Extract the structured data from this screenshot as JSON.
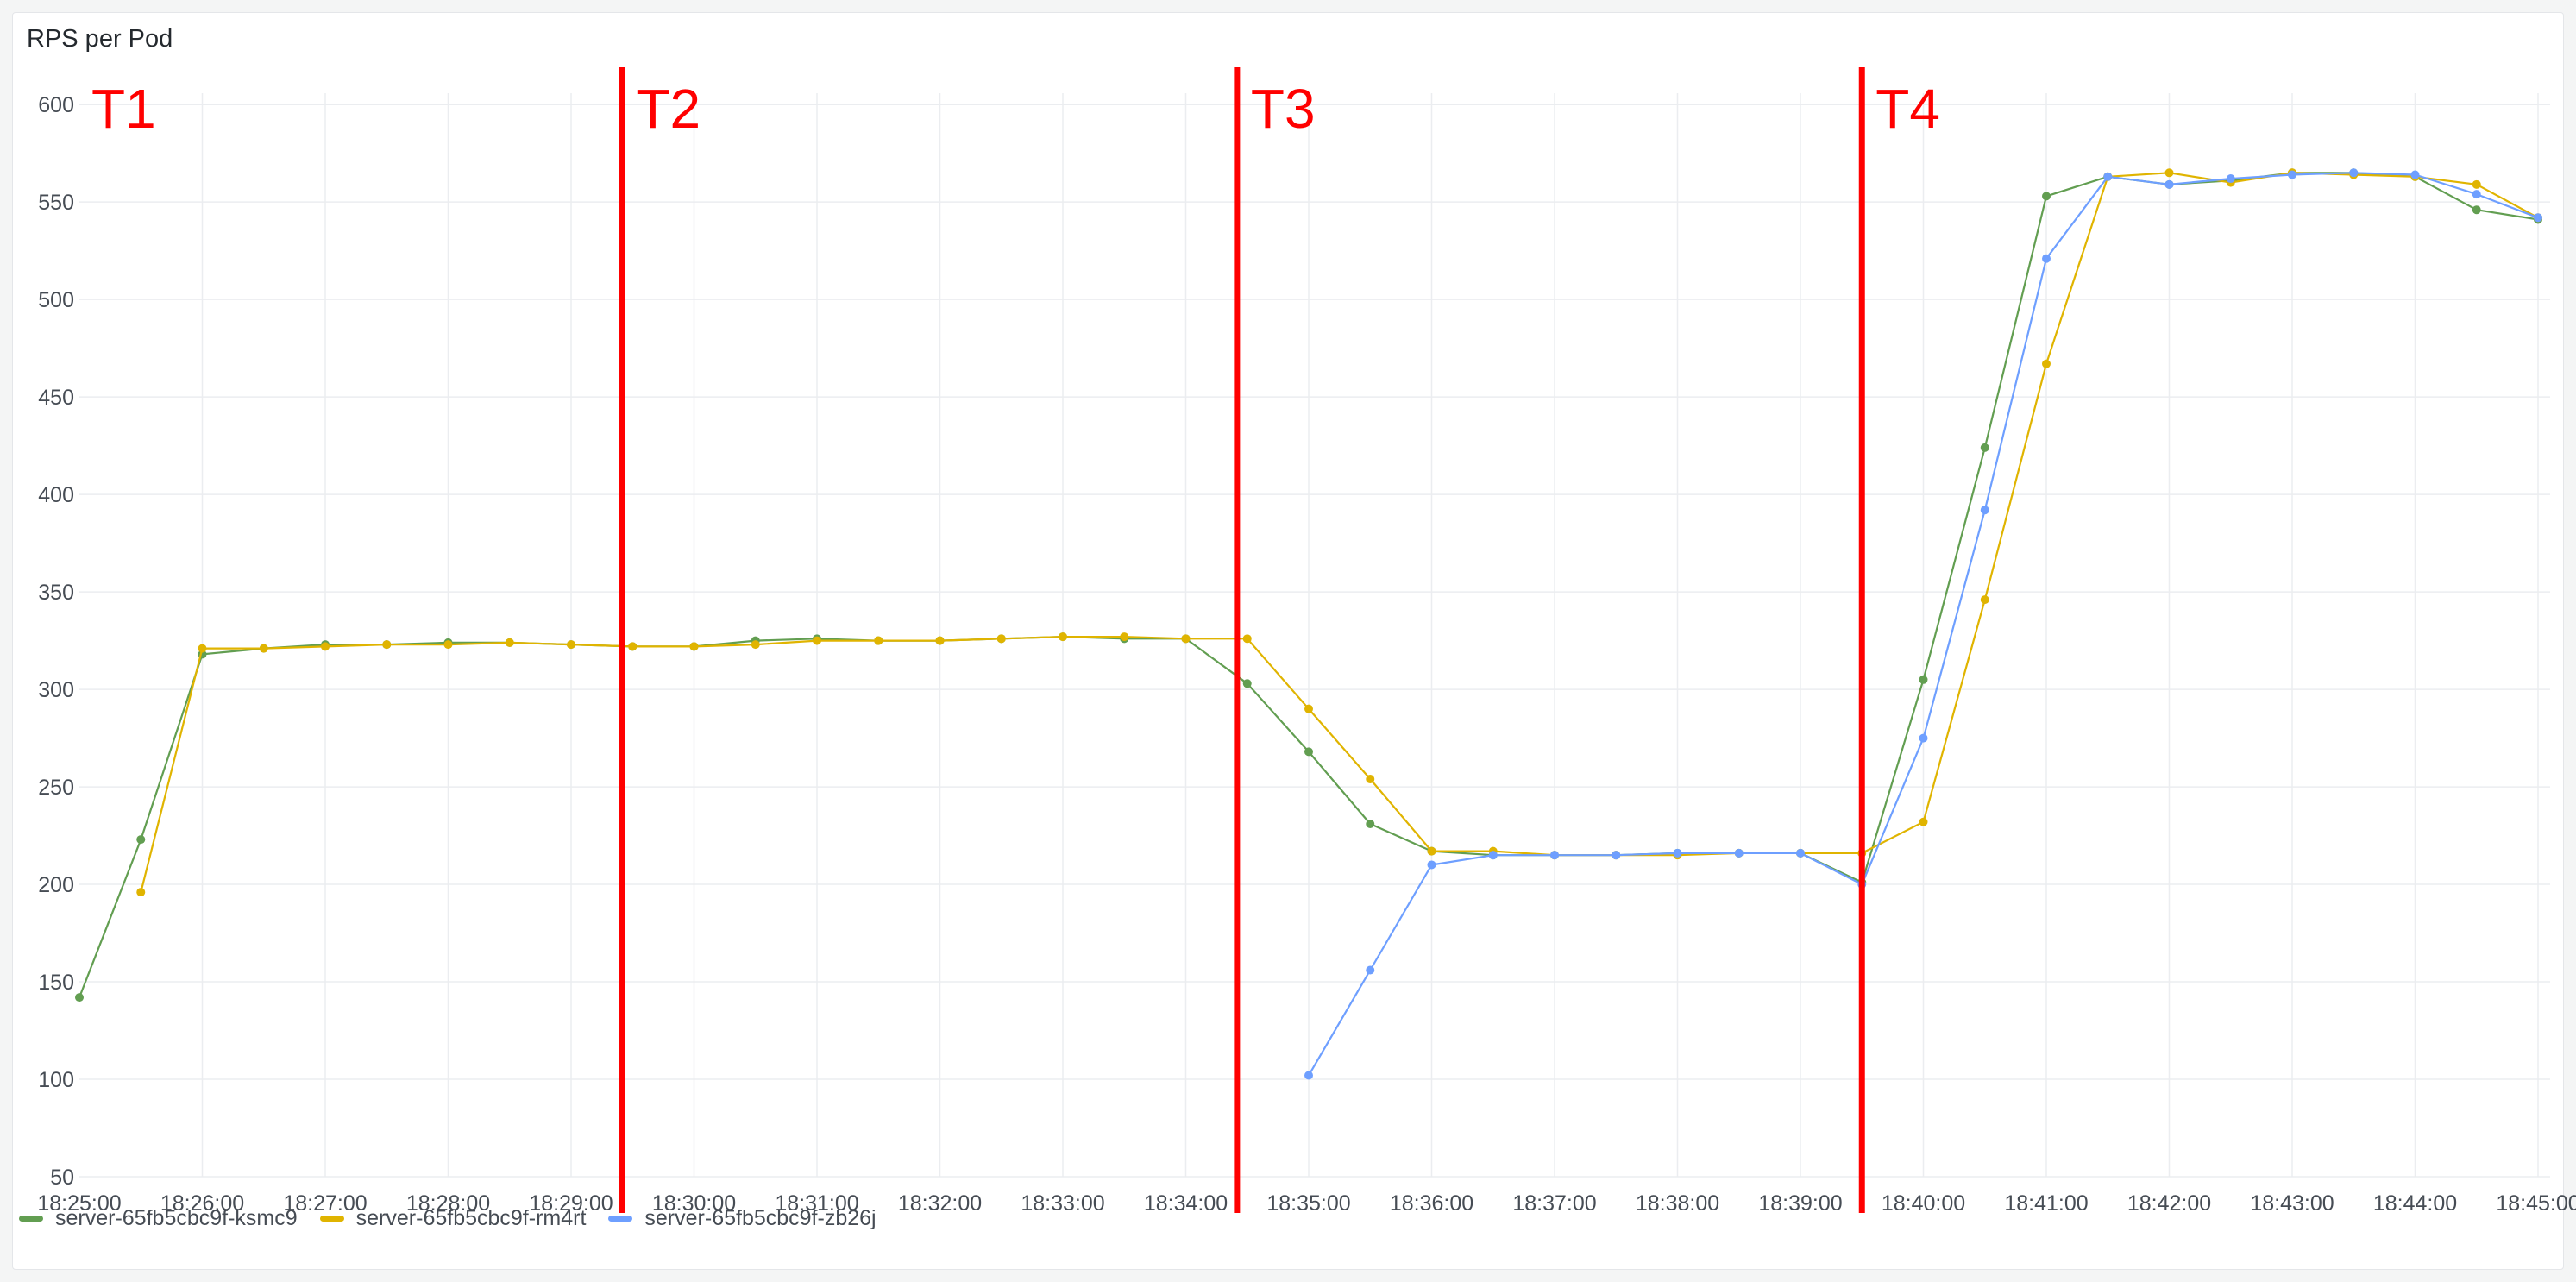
{
  "panel": {
    "title": "RPS per Pod"
  },
  "chart_data": {
    "type": "line",
    "title": "RPS per Pod",
    "xlabel": "",
    "ylabel": "",
    "ylim": [
      50,
      620
    ],
    "y_ticks": [
      50,
      100,
      150,
      200,
      250,
      300,
      350,
      400,
      450,
      500,
      550,
      600
    ],
    "x_ticks": [
      "18:25:00",
      "18:26:00",
      "18:27:00",
      "18:28:00",
      "18:29:00",
      "18:30:00",
      "18:31:00",
      "18:32:00",
      "18:33:00",
      "18:34:00",
      "18:35:00",
      "18:36:00",
      "18:37:00",
      "18:38:00",
      "18:39:00",
      "18:40:00",
      "18:41:00",
      "18:42:00",
      "18:43:00",
      "18:44:00",
      "18:45:00"
    ],
    "grid": true,
    "legend_position": "bottom-left",
    "markers": [
      {
        "label": "T1",
        "x": "18:25:00"
      },
      {
        "label": "T2",
        "x": "18:29:25"
      },
      {
        "label": "T3",
        "x": "18:34:25"
      },
      {
        "label": "T4",
        "x": "18:39:30"
      }
    ],
    "series": [
      {
        "name": "server-65fb5cbc9f-ksmc9",
        "color": "#629e51",
        "points": [
          [
            "18:25:00",
            142
          ],
          [
            "18:25:30",
            223
          ],
          [
            "18:26:00",
            318
          ],
          [
            "18:26:30",
            321
          ],
          [
            "18:27:00",
            323
          ],
          [
            "18:27:30",
            323
          ],
          [
            "18:28:00",
            324
          ],
          [
            "18:28:30",
            324
          ],
          [
            "18:29:00",
            323
          ],
          [
            "18:29:30",
            322
          ],
          [
            "18:30:00",
            322
          ],
          [
            "18:30:30",
            325
          ],
          [
            "18:31:00",
            326
          ],
          [
            "18:31:30",
            325
          ],
          [
            "18:32:00",
            325
          ],
          [
            "18:32:30",
            326
          ],
          [
            "18:33:00",
            327
          ],
          [
            "18:33:30",
            326
          ],
          [
            "18:34:00",
            326
          ],
          [
            "18:34:30",
            303
          ],
          [
            "18:35:00",
            268
          ],
          [
            "18:35:30",
            231
          ],
          [
            "18:36:00",
            217
          ],
          [
            "18:36:30",
            215
          ],
          [
            "18:37:00",
            215
          ],
          [
            "18:37:30",
            215
          ],
          [
            "18:38:00",
            216
          ],
          [
            "18:38:30",
            216
          ],
          [
            "18:39:00",
            216
          ],
          [
            "18:39:30",
            201
          ],
          [
            "18:40:00",
            305
          ],
          [
            "18:40:30",
            424
          ],
          [
            "18:41:00",
            553
          ],
          [
            "18:41:30",
            563
          ],
          [
            "18:42:00",
            559
          ],
          [
            "18:42:30",
            561
          ],
          [
            "18:43:00",
            565
          ],
          [
            "18:43:30",
            565
          ],
          [
            "18:44:00",
            563
          ],
          [
            "18:44:30",
            546
          ],
          [
            "18:45:00",
            541
          ]
        ]
      },
      {
        "name": "server-65fb5cbc9f-rm4rt",
        "color": "#e0b400",
        "points": [
          [
            "18:25:30",
            196
          ],
          [
            "18:26:00",
            321
          ],
          [
            "18:26:30",
            321
          ],
          [
            "18:27:00",
            322
          ],
          [
            "18:27:30",
            323
          ],
          [
            "18:28:00",
            323
          ],
          [
            "18:28:30",
            324
          ],
          [
            "18:29:00",
            323
          ],
          [
            "18:29:30",
            322
          ],
          [
            "18:30:00",
            322
          ],
          [
            "18:30:30",
            323
          ],
          [
            "18:31:00",
            325
          ],
          [
            "18:31:30",
            325
          ],
          [
            "18:32:00",
            325
          ],
          [
            "18:32:30",
            326
          ],
          [
            "18:33:00",
            327
          ],
          [
            "18:33:30",
            327
          ],
          [
            "18:34:00",
            326
          ],
          [
            "18:34:30",
            326
          ],
          [
            "18:35:00",
            290
          ],
          [
            "18:35:30",
            254
          ],
          [
            "18:36:00",
            217
          ],
          [
            "18:36:30",
            217
          ],
          [
            "18:37:00",
            215
          ],
          [
            "18:37:30",
            215
          ],
          [
            "18:38:00",
            215
          ],
          [
            "18:38:30",
            216
          ],
          [
            "18:39:00",
            216
          ],
          [
            "18:39:30",
            216
          ],
          [
            "18:40:00",
            232
          ],
          [
            "18:40:30",
            346
          ],
          [
            "18:41:00",
            467
          ],
          [
            "18:41:30",
            563
          ],
          [
            "18:42:00",
            565
          ],
          [
            "18:42:30",
            560
          ],
          [
            "18:43:00",
            565
          ],
          [
            "18:43:30",
            564
          ],
          [
            "18:44:00",
            563
          ],
          [
            "18:44:30",
            559
          ],
          [
            "18:45:00",
            542
          ]
        ]
      },
      {
        "name": "server-65fb5cbc9f-zb26j",
        "color": "#6e9fff",
        "points": [
          [
            "18:35:00",
            102
          ],
          [
            "18:35:30",
            156
          ],
          [
            "18:36:00",
            210
          ],
          [
            "18:36:30",
            215
          ],
          [
            "18:37:00",
            215
          ],
          [
            "18:37:30",
            215
          ],
          [
            "18:38:00",
            216
          ],
          [
            "18:38:30",
            216
          ],
          [
            "18:39:00",
            216
          ],
          [
            "18:39:30",
            200
          ],
          [
            "18:40:00",
            275
          ],
          [
            "18:40:30",
            392
          ],
          [
            "18:41:00",
            521
          ],
          [
            "18:41:30",
            563
          ],
          [
            "18:42:00",
            559
          ],
          [
            "18:42:30",
            562
          ],
          [
            "18:43:00",
            564
          ],
          [
            "18:43:30",
            565
          ],
          [
            "18:44:00",
            564
          ],
          [
            "18:44:30",
            554
          ],
          [
            "18:45:00",
            542
          ]
        ]
      }
    ]
  }
}
